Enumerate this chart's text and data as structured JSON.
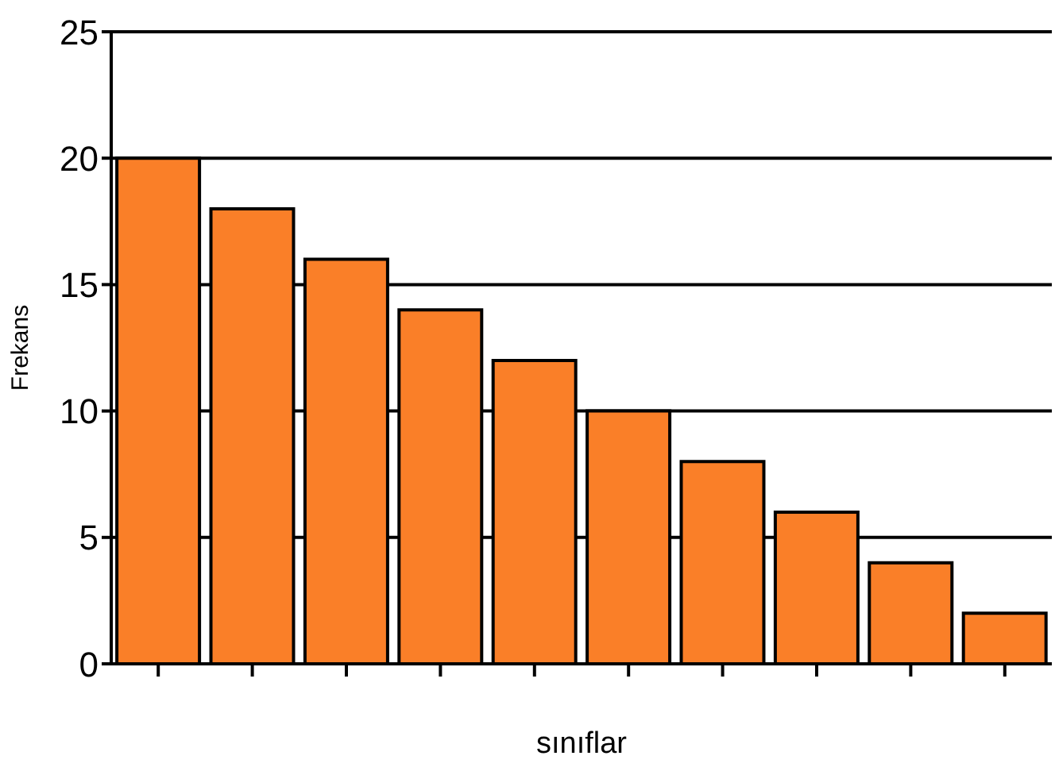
{
  "chart_data": {
    "type": "bar",
    "xlabel": "sınıflar",
    "ylabel": "Frekans",
    "categories": [
      null,
      null,
      null,
      null,
      null,
      null,
      null,
      null,
      null,
      null
    ],
    "values": [
      20,
      18,
      16,
      14,
      12,
      10,
      8,
      6,
      4,
      2
    ],
    "color": "#fa7f28",
    "ylim": [
      0,
      25
    ],
    "yticks": [
      0,
      5,
      10,
      15,
      20,
      25
    ],
    "grid": "y",
    "legend": false
  }
}
